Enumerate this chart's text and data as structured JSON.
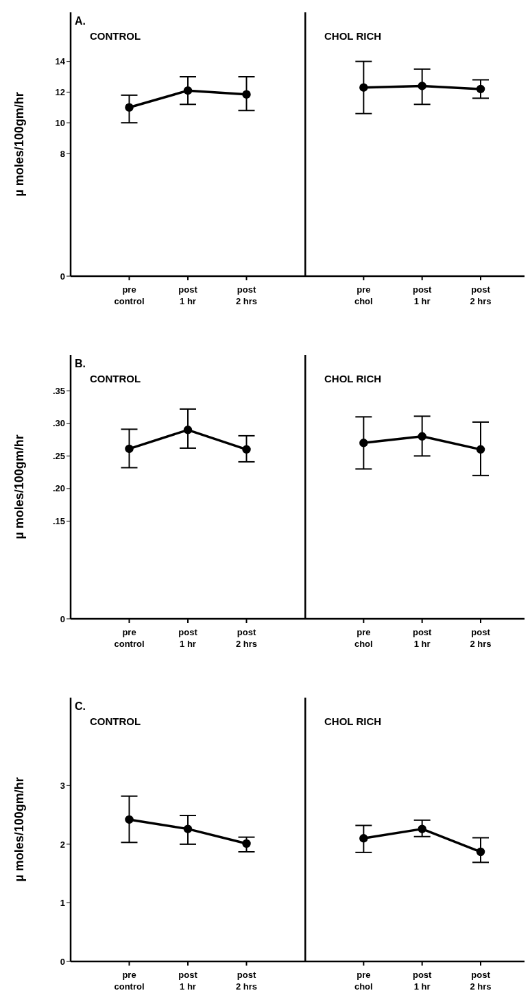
{
  "chart_data": [
    {
      "type": "line",
      "title": "CONTROL",
      "annotations": [
        "A."
      ],
      "ylabel": "µ moles/100gm/hr",
      "categories": [
        "pre control",
        "post 1 hr",
        "post 2 hrs"
      ],
      "marker": "circle",
      "ylim": [
        0,
        17.2
      ],
      "yticks": [
        0,
        8,
        10,
        12,
        14
      ],
      "series": [
        {
          "color": "#000000",
          "values": [
            11.0,
            12.1,
            11.85
          ],
          "errors": [
            [
              10.0,
              11.8
            ],
            [
              11.2,
              13.0
            ],
            [
              10.8,
              13.0
            ]
          ]
        }
      ]
    },
    {
      "type": "line",
      "title": "CHOL RICH",
      "categories": [
        "pre chol",
        "post 1 hr",
        "post 2 hrs"
      ],
      "marker": "circle",
      "ylim": [
        0,
        17.2
      ],
      "tick_labels": "x",
      "series": [
        {
          "color": "#000000",
          "values": [
            12.3,
            12.4,
            12.2
          ],
          "errors": [
            [
              10.6,
              14.0
            ],
            [
              11.2,
              13.5
            ],
            [
              11.6,
              12.8
            ]
          ]
        }
      ]
    },
    {
      "type": "line",
      "title": "CONTROL",
      "annotations": [
        "B."
      ],
      "ylabel": "µ moles/100gm/hr",
      "categories": [
        "pre control",
        "post 1 hr",
        "post 2 hrs"
      ],
      "marker": "circle",
      "ylim": [
        0,
        0.405
      ],
      "yticks": [
        0,
        {
          "value": 0.15,
          "label": ".15"
        },
        {
          "value": 0.2,
          "label": ".20"
        },
        {
          "value": 0.25,
          "label": ".25"
        },
        {
          "value": 0.3,
          "label": ".30"
        },
        {
          "value": 0.35,
          "label": ".35"
        }
      ],
      "series": [
        {
          "color": "#000000",
          "values": [
            0.261,
            0.29,
            0.26
          ],
          "errors": [
            [
              0.232,
              0.291
            ],
            [
              0.262,
              0.322
            ],
            [
              0.241,
              0.281
            ]
          ]
        }
      ]
    },
    {
      "type": "line",
      "title": "CHOL RICH",
      "categories": [
        "pre chol",
        "post 1 hr",
        "post 2 hrs"
      ],
      "marker": "circle",
      "ylim": [
        0,
        0.405
      ],
      "tick_labels": "x",
      "series": [
        {
          "color": "#000000",
          "values": [
            0.27,
            0.28,
            0.26
          ],
          "errors": [
            [
              0.23,
              0.31
            ],
            [
              0.25,
              0.311
            ],
            [
              0.22,
              0.302
            ]
          ]
        }
      ]
    },
    {
      "type": "line",
      "title": "CONTROL",
      "annotations": [
        "C."
      ],
      "ylabel": "µ moles/100gm/hr",
      "categories": [
        "pre control",
        "post 1 hr",
        "post 2 hrs"
      ],
      "marker": "circle",
      "ylim": [
        0,
        4.5
      ],
      "yticks": [
        0,
        1,
        2,
        3
      ],
      "series": [
        {
          "color": "#000000",
          "values": [
            2.42,
            2.26,
            2.01
          ],
          "errors": [
            [
              2.03,
              2.82
            ],
            [
              2.0,
              2.49
            ],
            [
              1.87,
              2.12
            ]
          ]
        }
      ]
    },
    {
      "type": "line",
      "title": "CHOL RICH",
      "categories": [
        "pre chol",
        "post 1 hr",
        "post 2 hrs"
      ],
      "marker": "circle",
      "ylim": [
        0,
        4.5
      ],
      "tick_labels": "x",
      "series": [
        {
          "color": "#000000",
          "values": [
            2.1,
            2.26,
            1.87
          ],
          "errors": [
            [
              1.86,
              2.32
            ],
            [
              2.13,
              2.41
            ],
            [
              1.69,
              2.11
            ]
          ]
        }
      ]
    }
  ]
}
